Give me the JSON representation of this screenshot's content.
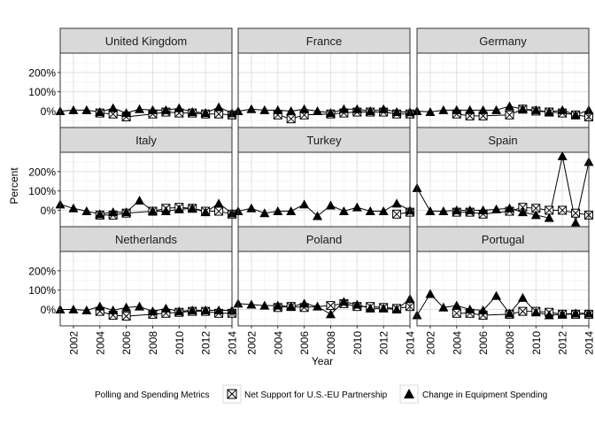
{
  "chart_data": {
    "type": "line",
    "layout": "facet-grid",
    "facet_rows": 3,
    "facet_cols": 3,
    "xlabel": "Year",
    "ylabel": "Percent",
    "x_ticks": [
      2002,
      2004,
      2006,
      2008,
      2010,
      2012,
      2014
    ],
    "x_tick_labels": [
      "2002",
      "2004",
      "2006",
      "2008",
      "2010",
      "2012",
      "2014"
    ],
    "xlim": [
      2001,
      2014
    ],
    "y_ticks": [
      0,
      100,
      200
    ],
    "y_tick_labels": [
      "0%",
      "100%",
      "200%"
    ],
    "ylim": [
      -85,
      300
    ],
    "grid": true,
    "legend": {
      "title": "Polling and Spending Metrics",
      "position": "bottom",
      "items": [
        "Net Support for U.S.-EU Partnership",
        "Change in Equipment Spending"
      ]
    },
    "series_styles": [
      {
        "name": "Net Support for U.S.-EU Partnership",
        "marker": "boxed-x-square"
      },
      {
        "name": "Change in Equipment Spending",
        "marker": "filled-triangle"
      }
    ],
    "facets": [
      {
        "name": "United Kingdom",
        "support": {
          "x": [
            2004,
            2005,
            2006,
            2008,
            2009,
            2010,
            2011,
            2012,
            2013,
            2014
          ],
          "y": [
            -10,
            -15,
            -30,
            -15,
            -5,
            -10,
            -10,
            -15,
            -15,
            -20
          ]
        },
        "spending": {
          "x": [
            2001,
            2002,
            2003,
            2004,
            2005,
            2006,
            2007,
            2008,
            2009,
            2010,
            2011,
            2012,
            2013,
            2014
          ],
          "y": [
            0,
            5,
            5,
            -5,
            15,
            -10,
            10,
            5,
            5,
            15,
            -5,
            -10,
            20,
            -10
          ]
        }
      },
      {
        "name": "France",
        "support": {
          "x": [
            2004,
            2005,
            2006,
            2008,
            2009,
            2010,
            2011,
            2012,
            2013,
            2014
          ],
          "y": [
            -20,
            -40,
            -20,
            -15,
            -10,
            -5,
            -5,
            -5,
            -15,
            -15
          ]
        },
        "spending": {
          "x": [
            2001,
            2002,
            2003,
            2004,
            2005,
            2006,
            2007,
            2008,
            2009,
            2010,
            2011,
            2012,
            2013,
            2014
          ],
          "y": [
            0,
            10,
            5,
            5,
            0,
            10,
            0,
            -10,
            10,
            10,
            0,
            10,
            -5,
            -5
          ]
        }
      },
      {
        "name": "Germany",
        "support": {
          "x": [
            2004,
            2005,
            2006,
            2008,
            2009,
            2010,
            2011,
            2012,
            2013,
            2014
          ],
          "y": [
            -15,
            -25,
            -25,
            -20,
            10,
            0,
            -5,
            -10,
            -20,
            -30
          ]
        },
        "spending": {
          "x": [
            2001,
            2002,
            2003,
            2004,
            2005,
            2006,
            2007,
            2008,
            2009,
            2010,
            2011,
            2012,
            2013,
            2014
          ],
          "y": [
            0,
            -5,
            5,
            5,
            5,
            5,
            5,
            25,
            10,
            5,
            -5,
            5,
            -20,
            5
          ]
        }
      },
      {
        "name": "Italy",
        "support": {
          "x": [
            2004,
            2005,
            2006,
            2008,
            2009,
            2010,
            2011,
            2012,
            2013,
            2014
          ],
          "y": [
            -25,
            -25,
            -15,
            -5,
            10,
            15,
            10,
            -5,
            -5,
            -20
          ]
        },
        "spending": {
          "x": [
            2001,
            2002,
            2003,
            2004,
            2005,
            2006,
            2007,
            2008,
            2009,
            2010,
            2011,
            2012,
            2013,
            2014
          ],
          "y": [
            30,
            10,
            -5,
            -20,
            -10,
            -10,
            50,
            -5,
            -5,
            5,
            10,
            -10,
            35,
            -15
          ]
        }
      },
      {
        "name": "Turkey",
        "support": {
          "x": [
            2013,
            2014
          ],
          "y": [
            -20,
            -10
          ]
        },
        "spending": {
          "x": [
            2001,
            2002,
            2003,
            2004,
            2005,
            2006,
            2007,
            2008,
            2009,
            2010,
            2011,
            2012,
            2013,
            2014
          ],
          "y": [
            -5,
            10,
            -15,
            -5,
            -5,
            30,
            -30,
            25,
            -5,
            15,
            -5,
            -5,
            35,
            0
          ]
        }
      },
      {
        "name": "Spain",
        "support": {
          "x": [
            2004,
            2005,
            2006,
            2008,
            2009,
            2010,
            2011,
            2012,
            2013,
            2014
          ],
          "y": [
            -10,
            -10,
            -20,
            -5,
            15,
            10,
            0,
            0,
            -15,
            -25
          ]
        },
        "spending": {
          "x": [
            2001,
            2002,
            2003,
            2004,
            2005,
            2006,
            2007,
            2008,
            2009,
            2010,
            2011,
            2012,
            2013,
            2014
          ],
          "y": [
            115,
            -5,
            -5,
            0,
            0,
            0,
            5,
            10,
            -10,
            -25,
            -40,
            280,
            -65,
            250
          ]
        }
      },
      {
        "name": "Netherlands",
        "support": {
          "x": [
            2004,
            2005,
            2006,
            2008,
            2009,
            2010,
            2011,
            2012,
            2013,
            2014
          ],
          "y": [
            -10,
            -30,
            -35,
            -25,
            -20,
            -15,
            -10,
            -10,
            -20,
            -20
          ]
        },
        "spending": {
          "x": [
            2001,
            2002,
            2003,
            2004,
            2005,
            2006,
            2007,
            2008,
            2009,
            2010,
            2011,
            2012,
            2013,
            2014
          ],
          "y": [
            0,
            0,
            -5,
            15,
            -5,
            10,
            15,
            -10,
            5,
            -10,
            -5,
            -5,
            -5,
            -5
          ]
        }
      },
      {
        "name": "Poland",
        "support": {
          "x": [
            2004,
            2005,
            2006,
            2008,
            2009,
            2010,
            2011,
            2012,
            2013,
            2014
          ],
          "y": [
            10,
            15,
            10,
            20,
            30,
            15,
            15,
            10,
            5,
            15
          ]
        },
        "spending": {
          "x": [
            2001,
            2002,
            2003,
            2004,
            2005,
            2006,
            2007,
            2008,
            2009,
            2010,
            2011,
            2012,
            2013,
            2014
          ],
          "y": [
            30,
            25,
            20,
            20,
            15,
            30,
            15,
            -25,
            40,
            25,
            5,
            5,
            0,
            55
          ]
        }
      },
      {
        "name": "Portugal",
        "support": {
          "x": [
            2004,
            2005,
            2006,
            2008,
            2009,
            2010,
            2011,
            2012,
            2013,
            2014
          ],
          "y": [
            -20,
            -20,
            -30,
            -25,
            -10,
            -10,
            -15,
            -25,
            -25,
            -25
          ]
        },
        "spending": {
          "x": [
            2001,
            2002,
            2003,
            2004,
            2005,
            2006,
            2007,
            2008,
            2009,
            2010,
            2011,
            2012,
            2013,
            2014
          ],
          "y": [
            -30,
            80,
            10,
            20,
            0,
            -5,
            70,
            -20,
            60,
            -15,
            -30,
            -25,
            -20,
            -20
          ]
        }
      }
    ]
  }
}
